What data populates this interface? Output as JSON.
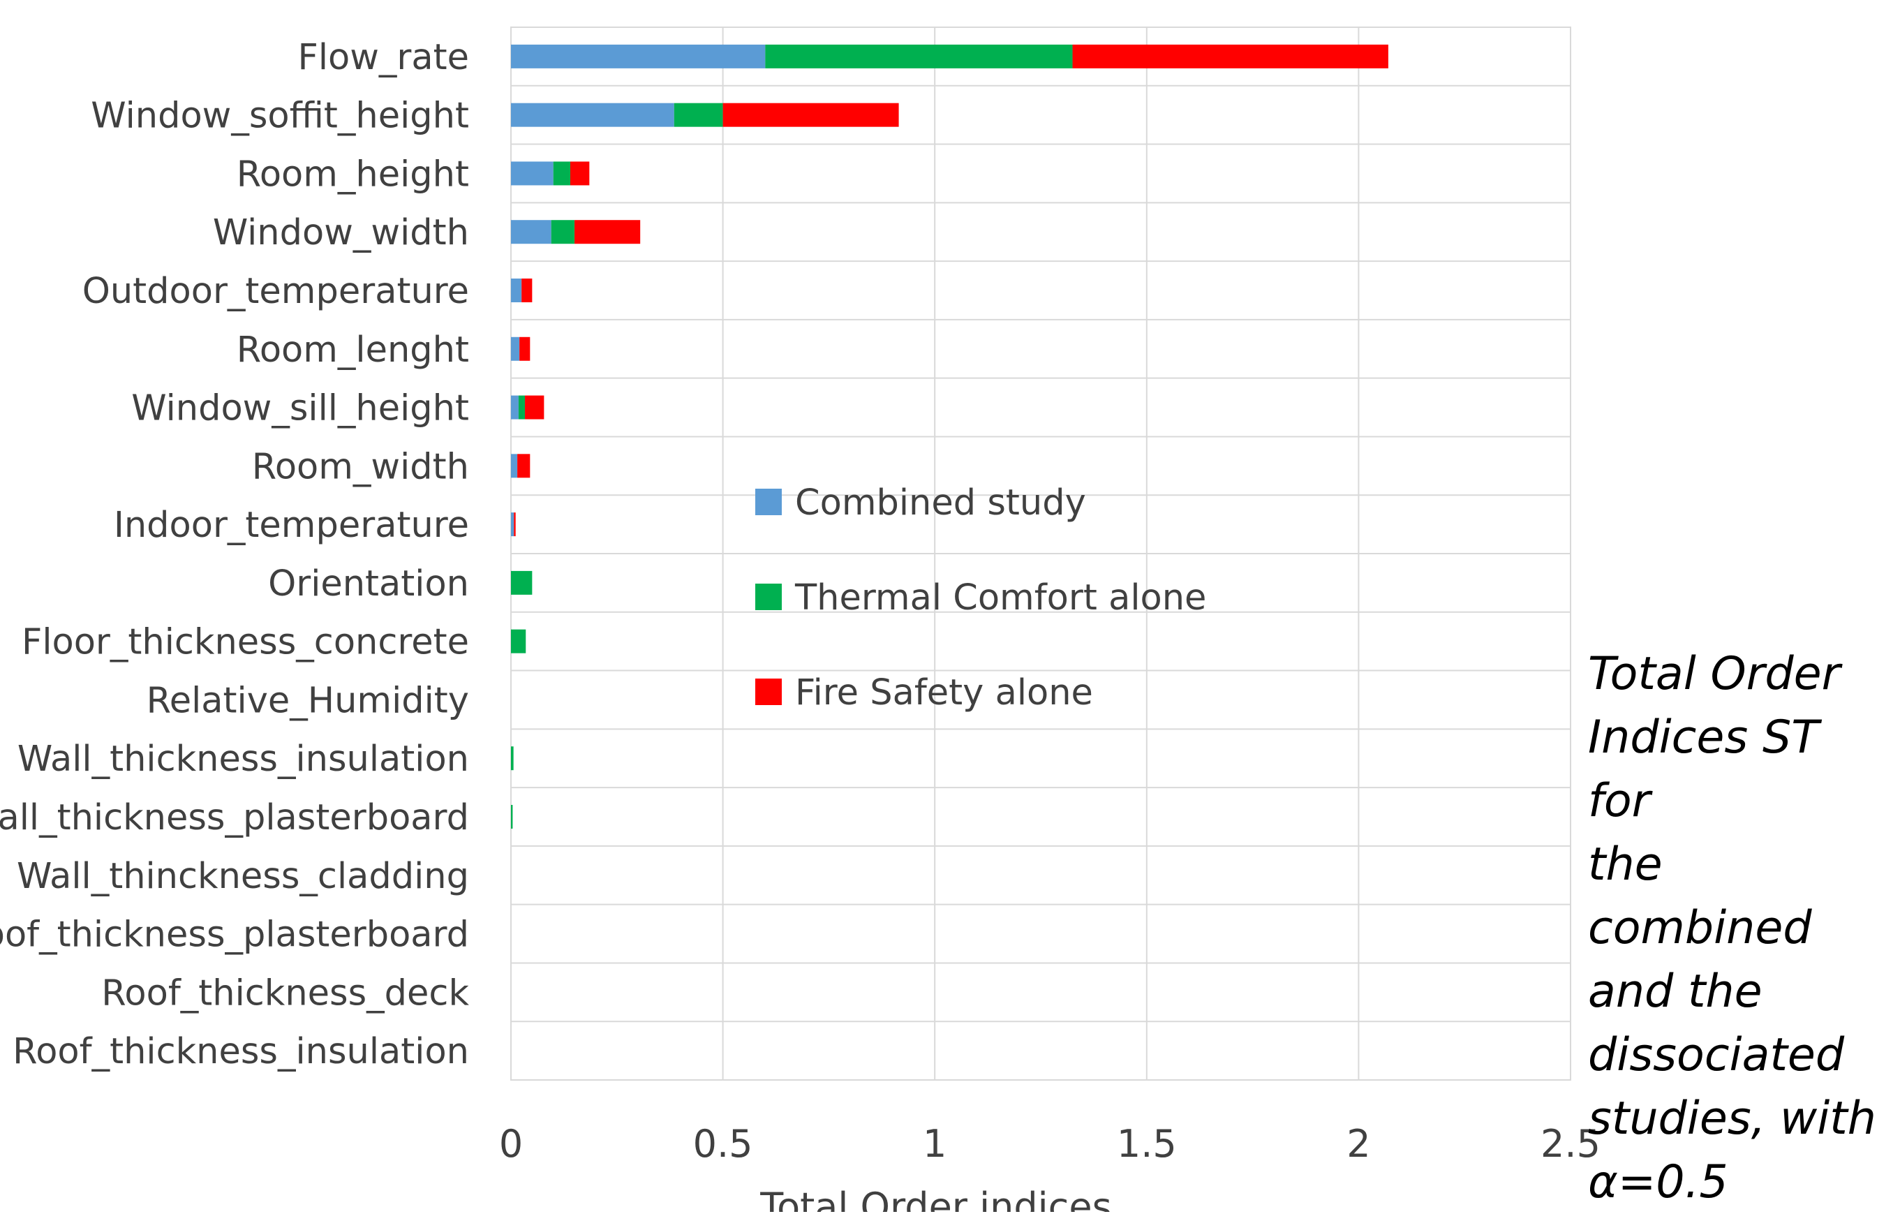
{
  "chart_data": {
    "type": "bar",
    "orientation": "horizontal",
    "stacked": true,
    "categories": [
      "Flow_rate",
      "Window_soffit_height",
      "Room_height",
      "Window_width",
      "Outdoor_temperature",
      "Room_lenght",
      "Window_sill_height",
      "Room_width",
      "Indoor_temperature",
      "Orientation",
      "Floor_thickness_concrete",
      "Relative_Humidity",
      "Wall_thickness_insulation",
      "Wall_thickness_plasterboard",
      "Wall_thinckness_cladding",
      "Roof_thickness_plasterboard",
      "Roof_thickness_deck",
      "Roof_thickness_insulation"
    ],
    "series": [
      {
        "name": "Combined study",
        "color": "#5B9BD5",
        "values": [
          0.6,
          0.385,
          0.1,
          0.095,
          0.025,
          0.02,
          0.018,
          0.015,
          0.007,
          0,
          0,
          0,
          0,
          0,
          0,
          0,
          0,
          0
        ]
      },
      {
        "name": "Thermal Comfort alone",
        "color": "#00B050",
        "values": [
          0.725,
          0.115,
          0.04,
          0.055,
          0,
          0,
          0.015,
          0,
          0,
          0.05,
          0.035,
          0,
          0.006,
          0.004,
          0,
          0,
          0,
          0
        ]
      },
      {
        "name": "Fire Safety alone",
        "color": "#FF0000",
        "values": [
          0.745,
          0.415,
          0.045,
          0.155,
          0.025,
          0.025,
          0.045,
          0.03,
          0.004,
          0,
          0,
          0,
          0,
          0,
          0,
          0,
          0,
          0
        ]
      }
    ],
    "xlabel": "Total Order indices",
    "ylabel": "",
    "xlim": [
      0,
      2.5
    ],
    "xticks": [
      0,
      0.5,
      1,
      1.5,
      2,
      2.5
    ],
    "xtick_labels": [
      "0",
      "0.5",
      "1",
      "1.5",
      "2",
      "2.5"
    ],
    "grid": true,
    "legend_position": "center",
    "gridline_color": "#D9D9D9"
  },
  "caption": "Total Order\nIndices ST for\nthe combined\nand the\ndissociated\nstudies, with\nα=0.5"
}
